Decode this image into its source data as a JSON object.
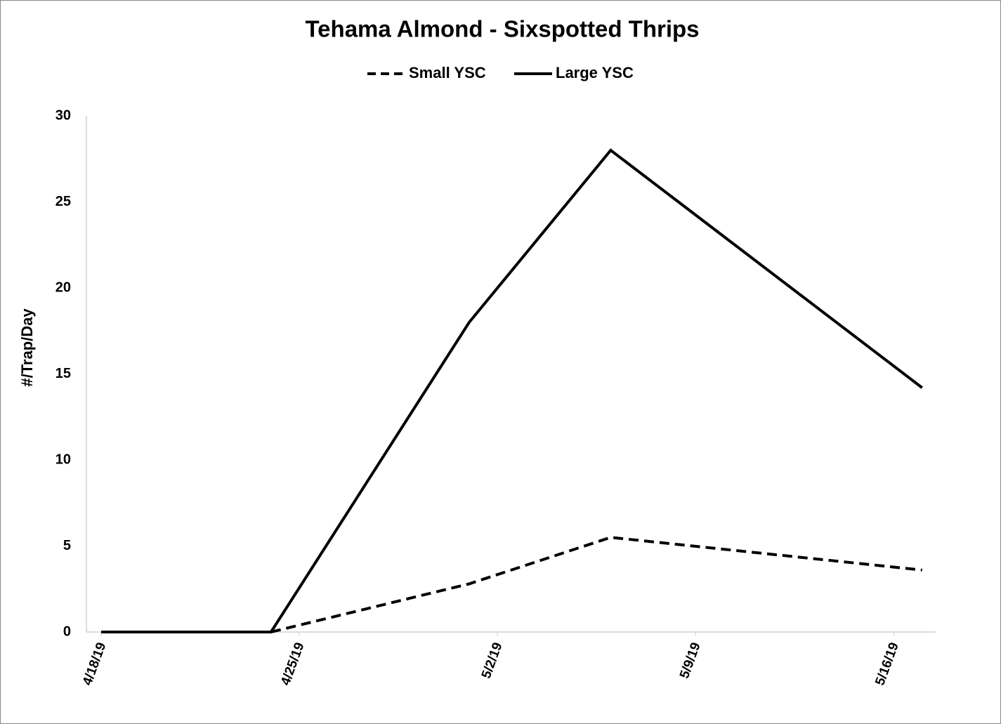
{
  "chart_data": {
    "type": "line",
    "title": "Tehama Almond - Sixspotted Thrips",
    "y_label": "#/Trap/Day",
    "x": [
      "2019-04-18",
      "2019-04-24",
      "2019-05-01",
      "2019-05-06",
      "2019-05-17"
    ],
    "series": [
      {
        "name": "Small YSC",
        "color": "#000000",
        "dash": true,
        "values": [
          0,
          0,
          2.8,
          5.5,
          3.6
        ]
      },
      {
        "name": "Large YSC",
        "color": "#000000",
        "dash": false,
        "values": [
          0,
          0,
          18,
          28,
          14.2
        ]
      }
    ],
    "xlim": [
      "2019-04-18",
      "2019-05-18"
    ],
    "xticks": [
      {
        "value": "2019-04-18",
        "label": "4/18/19"
      },
      {
        "value": "2019-04-25",
        "label": "4/25/19"
      },
      {
        "value": "2019-05-02",
        "label": "5/2/19"
      },
      {
        "value": "2019-05-09",
        "label": "5/9/19"
      },
      {
        "value": "2019-05-16",
        "label": "5/16/19"
      }
    ],
    "ylim": [
      0,
      30
    ],
    "yticks": [
      0,
      5,
      10,
      15,
      20,
      25,
      30
    ],
    "grid": false,
    "legend": "top"
  }
}
